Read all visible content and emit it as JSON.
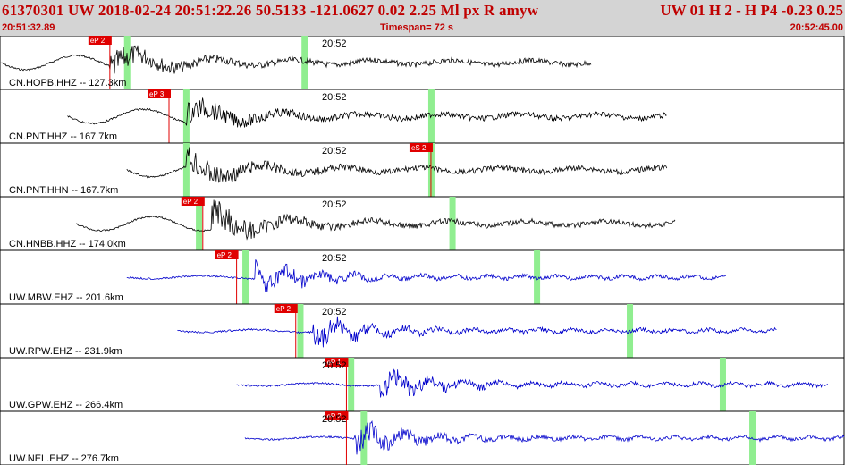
{
  "header": {
    "event_line": "61370301 UW 2018-02-24 20:51:22.26   50.5133 -121.0627   0.02  2.25 Ml  px  R amyw",
    "status_line": "UW 01  H  2  -  H P4   -0.23  0.25",
    "start_time": "20:51:32.89",
    "timespan": "Timespan=  72 s",
    "end_time": "20:52:45.00"
  },
  "colors": {
    "header_bg": "#d4d4d4",
    "header_text": "#c00000",
    "trace_black": "#000000",
    "trace_blue": "#0000cc",
    "pick_red": "#e00000",
    "window_green": "#90ee90"
  },
  "channels": [
    {
      "label": "CN.HOPB.HHZ -- 127.3km",
      "minute_label": "20:52",
      "pick_label": "eP 2",
      "color": "black",
      "start": 0.0,
      "end": 0.7,
      "onset": 0.13,
      "amp": 0.45,
      "freq": 7,
      "pick_pos": 0.13,
      "green": [
        0.15,
        0.36
      ]
    },
    {
      "label": "CN.PNT.HHZ -- 167.7km",
      "minute_label": "20:52",
      "pick_label": "eP 3",
      "color": "black",
      "start": 0.08,
      "end": 0.79,
      "onset": 0.22,
      "amp": 0.4,
      "freq": 8,
      "pick_pos": 0.2,
      "green": [
        0.22,
        0.51
      ]
    },
    {
      "label": "CN.PNT.HHN -- 167.7km",
      "minute_label": "20:52",
      "pick_label": "eS 2",
      "color": "black",
      "start": 0.15,
      "end": 0.79,
      "onset": 0.22,
      "amp": 0.45,
      "freq": 9,
      "pick_pos": 0.51,
      "green": [
        0.22,
        0.51
      ]
    },
    {
      "label": "CN.HNBB.HHZ -- 174.0km",
      "minute_label": "20:52",
      "pick_label": "eP 2",
      "color": "black",
      "start": 0.09,
      "end": 0.8,
      "onset": 0.25,
      "amp": 0.5,
      "freq": 7,
      "pick_pos": 0.24,
      "green": [
        0.235,
        0.535
      ]
    },
    {
      "label": "UW.MBW.EHZ -- 201.6km",
      "minute_label": "20:52",
      "pick_label": "eP 2",
      "color": "blue",
      "start": 0.15,
      "end": 0.86,
      "onset": 0.3,
      "amp": 0.42,
      "freq": 18,
      "pick_pos": 0.28,
      "green": [
        0.29,
        0.635
      ]
    },
    {
      "label": "UW.RPW.EHZ -- 231.9km",
      "minute_label": "20:52",
      "pick_label": "eP 2",
      "color": "blue",
      "start": 0.21,
      "end": 0.92,
      "onset": 0.37,
      "amp": 0.38,
      "freq": 18,
      "pick_pos": 0.35,
      "green": [
        0.355,
        0.745
      ]
    },
    {
      "label": "UW.GPW.EHZ -- 266.4km",
      "minute_label": "20:52",
      "pick_label": "eP 1",
      "color": "blue",
      "start": 0.28,
      "end": 0.98,
      "onset": 0.45,
      "amp": 0.42,
      "freq": 20,
      "pick_pos": 0.41,
      "green": [
        0.415,
        0.855
      ]
    },
    {
      "label": "UW.NEL.EHZ -- 276.7km",
      "minute_label": "20:52",
      "pick_label": "eP 2",
      "color": "blue",
      "start": 0.29,
      "end": 1.0,
      "onset": 0.42,
      "amp": 0.42,
      "freq": 20,
      "pick_pos": 0.41,
      "green": [
        0.43,
        0.89
      ]
    }
  ]
}
